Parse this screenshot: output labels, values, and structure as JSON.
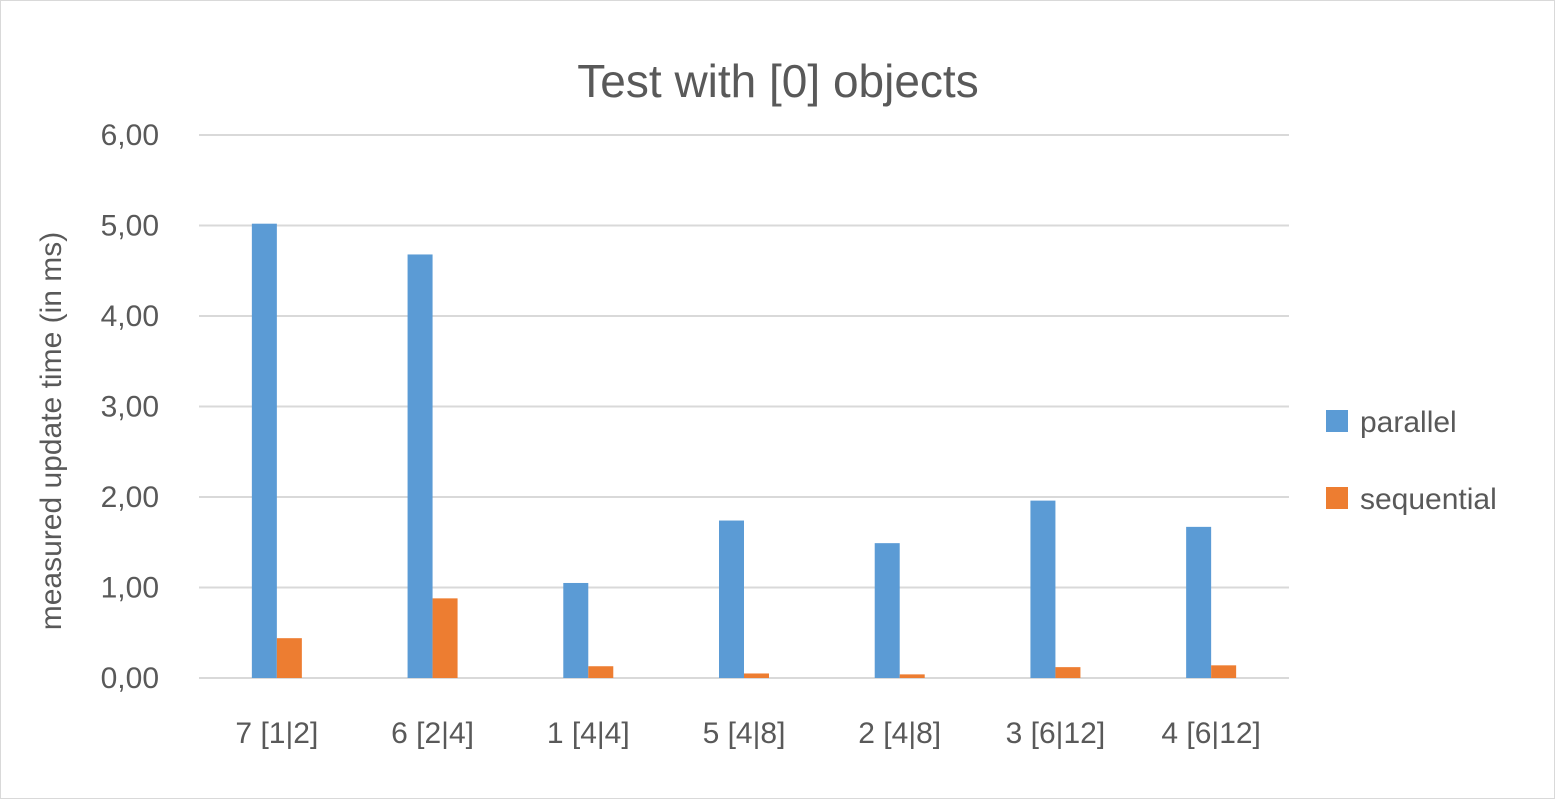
{
  "chart_data": {
    "type": "bar",
    "title": "Test with [0] objects",
    "xlabel": "",
    "ylabel": "measured update time (in ms)",
    "ylim": [
      0,
      6
    ],
    "yticks": [
      "0,00",
      "1,00",
      "2,00",
      "3,00",
      "4,00",
      "5,00",
      "6,00"
    ],
    "grid": true,
    "legend_position": "right",
    "categories": [
      "7 [1|2]",
      "6 [2|4]",
      "1 [4|4]",
      "5 [4|8]",
      "2 [4|8]",
      "3 [6|12]",
      "4 [6|12]"
    ],
    "series": [
      {
        "name": "parallel",
        "color": "#5b9bd5",
        "values": [
          5.02,
          4.68,
          1.05,
          1.74,
          1.49,
          1.96,
          1.67
        ]
      },
      {
        "name": "sequential",
        "color": "#ed7d31",
        "values": [
          0.44,
          0.88,
          0.13,
          0.05,
          0.04,
          0.12,
          0.14
        ]
      }
    ]
  }
}
